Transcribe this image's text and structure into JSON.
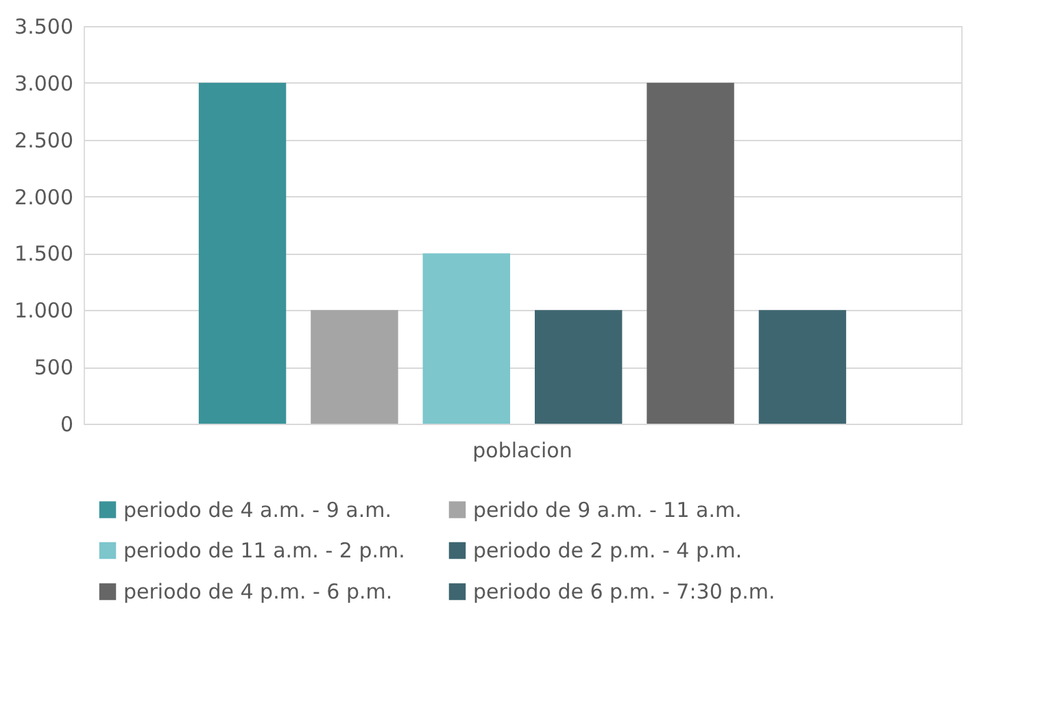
{
  "chart_data": {
    "type": "bar",
    "categories": [
      "poblacion"
    ],
    "series": [
      {
        "name": "periodo de 4 a.m. - 9 a.m.",
        "color": "#3a9399",
        "values": [
          3000
        ]
      },
      {
        "name": "perido de 9 a.m. - 11 a.m.",
        "color": "#a5a5a5",
        "values": [
          1000
        ]
      },
      {
        "name": "periodo de 11 a.m. - 2 p.m.",
        "color": "#7cc6cc",
        "values": [
          1500
        ]
      },
      {
        "name": "periodo de 2 p.m. - 4 p.m.",
        "color": "#3e6670",
        "values": [
          1000
        ]
      },
      {
        "name": "periodo de 4 p.m. - 6 p.m.",
        "color": "#666666",
        "values": [
          3000
        ]
      },
      {
        "name": "periodo de 6 p.m. - 7:30 p.m.",
        "color": "#3e6670",
        "values": [
          1000
        ]
      }
    ],
    "ylim": [
      0,
      3500
    ],
    "yticks": [
      0,
      500,
      {
        "value": 1000,
        "label": "1.000"
      },
      {
        "value": 1500,
        "label": "1.500"
      },
      {
        "value": 2000,
        "label": "2.000"
      },
      {
        "value": 2500,
        "label": "2.500"
      },
      {
        "value": 3000,
        "label": "3.000"
      },
      {
        "value": 3500,
        "label": "3.500"
      }
    ],
    "grid": "y",
    "legend": "bottom"
  }
}
